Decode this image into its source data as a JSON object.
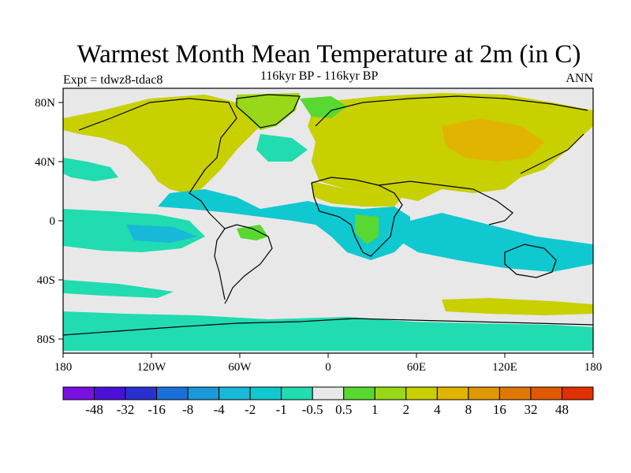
{
  "title": "Warmest Month Mean Temperature at 2m (in C)",
  "subtitle": "116kyr BP - 116kyr BP",
  "experiment": "Expt = tdwz8-tdac8",
  "period": "ANN",
  "axes": {
    "lat_labels": [
      "80N",
      "40N",
      "0",
      "40S",
      "80S"
    ],
    "lon_labels": [
      "180",
      "120W",
      "60W",
      "0",
      "60E",
      "120E",
      "180"
    ]
  },
  "colorbar": {
    "colors": [
      "#7a10e0",
      "#4a10d8",
      "#2a30d0",
      "#1a70d8",
      "#1a98d8",
      "#18b8d8",
      "#10c8d0",
      "#20dcb0",
      "#e8e8e8",
      "#58d830",
      "#98d818",
      "#c8d000",
      "#e0b400",
      "#e09800",
      "#e07800",
      "#e05800",
      "#e03000"
    ],
    "labels": [
      "-48",
      "-32",
      "-16",
      "-8",
      "-4",
      "-2",
      "-1",
      "-0.5",
      "0.5",
      "1",
      "2",
      "4",
      "8",
      "16",
      "32",
      "48"
    ]
  }
}
